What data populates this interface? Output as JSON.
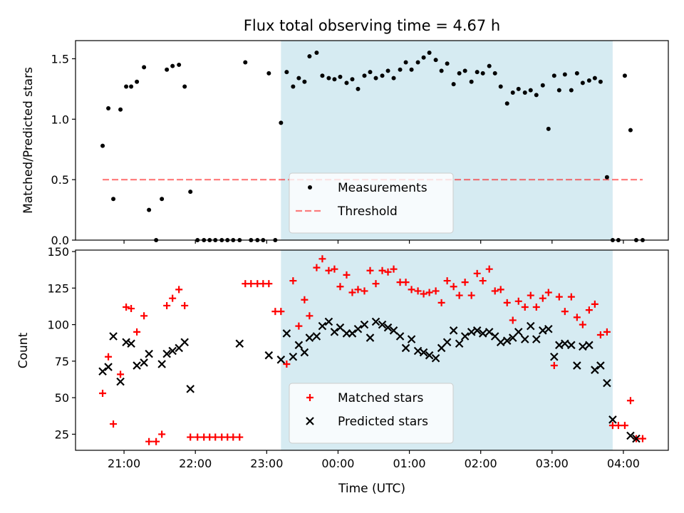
{
  "chart_data": {
    "type": "scatter",
    "title": "Flux total observing time = 4.67 h",
    "xlabel": "Time (UTC)",
    "x_ticks": [
      "21:00",
      "22:00",
      "23:00",
      "00:00",
      "01:00",
      "02:00",
      "03:00",
      "04:00"
    ],
    "x_tick_hours": [
      21,
      22,
      23,
      24,
      25,
      26,
      27,
      28
    ],
    "xlim_hours": [
      20.32,
      28.63
    ],
    "shaded_span_hours": [
      23.2,
      27.85
    ],
    "colors": {
      "span": "#add8e6",
      "measurements": "#000000",
      "threshold": "#ff0000",
      "matched": "#ff0000",
      "predicted": "#000000"
    },
    "panels": [
      {
        "id": "ratio",
        "ylabel": "Matched/Predicted stars",
        "ylim": [
          0,
          1.65
        ],
        "y_ticks": [
          0.0,
          0.5,
          1.0,
          1.5
        ],
        "y_tick_labels": [
          "0.0",
          "0.5",
          "1.0",
          "1.5"
        ],
        "legend_position": "lower-center",
        "threshold": {
          "name": "Threshold",
          "y": 0.5,
          "x_range": [
            20.7,
            28.27
          ]
        },
        "series": [
          {
            "name": "Measurements",
            "marker": "dot",
            "x": [
              20.7,
              20.78,
              20.85,
              20.95,
              21.03,
              21.1,
              21.18,
              21.28,
              21.35,
              21.45,
              21.53,
              21.6,
              21.68,
              21.77,
              21.85,
              21.93,
              22.03,
              22.12,
              22.2,
              22.28,
              22.37,
              22.45,
              22.53,
              22.62,
              22.7,
              22.78,
              22.87,
              22.95,
              23.03,
              23.12,
              23.2,
              23.28,
              23.37,
              23.45,
              23.53,
              23.6,
              23.7,
              23.78,
              23.87,
              23.95,
              24.03,
              24.12,
              24.2,
              24.28,
              24.37,
              24.45,
              24.53,
              24.62,
              24.7,
              24.78,
              24.87,
              24.95,
              25.03,
              25.12,
              25.2,
              25.28,
              25.37,
              25.45,
              25.53,
              25.62,
              25.7,
              25.78,
              25.87,
              25.95,
              26.03,
              26.12,
              26.2,
              26.28,
              26.37,
              26.45,
              26.53,
              26.62,
              26.7,
              26.78,
              26.87,
              26.95,
              27.03,
              27.1,
              27.18,
              27.27,
              27.35,
              27.43,
              27.52,
              27.6,
              27.68,
              27.77,
              27.85,
              27.93,
              28.02,
              28.1,
              28.18,
              28.27
            ],
            "y": [
              0.78,
              1.09,
              0.34,
              1.08,
              1.27,
              1.27,
              1.31,
              1.43,
              0.25,
              0.0,
              0.34,
              1.41,
              1.44,
              1.45,
              1.27,
              0.4,
              0.0,
              0.0,
              0.0,
              0.0,
              0.0,
              0.0,
              0.0,
              0.0,
              1.47,
              0.0,
              0.0,
              0.0,
              1.38,
              0.0,
              0.97,
              1.39,
              1.27,
              1.34,
              1.31,
              1.52,
              1.55,
              1.36,
              1.34,
              1.33,
              1.35,
              1.3,
              1.33,
              1.25,
              1.36,
              1.39,
              1.34,
              1.36,
              1.4,
              1.34,
              1.41,
              1.47,
              1.41,
              1.47,
              1.51,
              1.55,
              1.49,
              1.4,
              1.46,
              1.29,
              1.38,
              1.4,
              1.31,
              1.39,
              1.38,
              1.44,
              1.38,
              1.27,
              1.13,
              1.22,
              1.25,
              1.22,
              1.24,
              1.2,
              1.28,
              0.92,
              1.36,
              1.24,
              1.37,
              1.24,
              1.38,
              1.3,
              1.32,
              1.34,
              1.31,
              0.52,
              0.0,
              0.0,
              1.36,
              0.91,
              0.0,
              0.0
            ]
          }
        ]
      },
      {
        "id": "count",
        "ylabel": "Count",
        "ylim": [
          14,
          151
        ],
        "y_ticks": [
          25,
          50,
          75,
          100,
          125,
          150
        ],
        "y_tick_labels": [
          "25",
          "50",
          "75",
          "100",
          "125",
          "150"
        ],
        "legend_position": "lower-center",
        "series": [
          {
            "name": "Matched stars",
            "marker": "plus",
            "x": [
              20.7,
              20.78,
              20.85,
              20.95,
              21.03,
              21.1,
              21.18,
              21.28,
              21.35,
              21.45,
              21.53,
              21.6,
              21.68,
              21.77,
              21.85,
              21.93,
              22.03,
              22.12,
              22.2,
              22.28,
              22.37,
              22.45,
              22.53,
              22.62,
              22.7,
              22.78,
              22.87,
              22.95,
              23.03,
              23.12,
              23.2,
              23.28,
              23.37,
              23.45,
              23.53,
              23.6,
              23.7,
              23.78,
              23.87,
              23.95,
              24.03,
              24.12,
              24.2,
              24.28,
              24.37,
              24.45,
              24.53,
              24.62,
              24.7,
              24.78,
              24.87,
              24.95,
              25.03,
              25.12,
              25.2,
              25.28,
              25.37,
              25.45,
              25.53,
              25.62,
              25.7,
              25.78,
              25.87,
              25.95,
              26.03,
              26.12,
              26.2,
              26.28,
              26.37,
              26.45,
              26.53,
              26.62,
              26.7,
              26.78,
              26.87,
              26.95,
              27.03,
              27.1,
              27.18,
              27.27,
              27.35,
              27.43,
              27.52,
              27.6,
              27.68,
              27.77,
              27.85,
              27.93,
              28.02,
              28.1,
              28.18,
              28.27
            ],
            "y": [
              53,
              78,
              32,
              66,
              112,
              111,
              95,
              106,
              20,
              20,
              25,
              113,
              118,
              124,
              113,
              23,
              23,
              23,
              23,
              23,
              23,
              23,
              23,
              23,
              128,
              128,
              128,
              128,
              128,
              109,
              109,
              73,
              130,
              99,
              117,
              106,
              139,
              145,
              137,
              138,
              126,
              134,
              122,
              124,
              123,
              137,
              128,
              137,
              136,
              138,
              129,
              129,
              124,
              123,
              121,
              122,
              123,
              115,
              130,
              126,
              120,
              129,
              120,
              135,
              130,
              138,
              123,
              124,
              115,
              103,
              116,
              112,
              120,
              112,
              118,
              122,
              72,
              119,
              109,
              119,
              105,
              100,
              110,
              114,
              93,
              95,
              31,
              31,
              31,
              48,
              22,
              22
            ]
          },
          {
            "name": "Predicted stars",
            "marker": "x",
            "x": [
              20.7,
              20.78,
              20.85,
              20.95,
              21.03,
              21.1,
              21.18,
              21.28,
              21.35,
              21.53,
              21.6,
              21.68,
              21.77,
              21.85,
              21.93,
              22.62,
              23.03,
              23.2,
              23.28,
              23.37,
              23.45,
              23.53,
              23.6,
              23.7,
              23.78,
              23.87,
              23.95,
              24.03,
              24.12,
              24.2,
              24.28,
              24.37,
              24.45,
              24.53,
              24.62,
              24.7,
              24.78,
              24.87,
              24.95,
              25.03,
              25.12,
              25.2,
              25.28,
              25.37,
              25.45,
              25.53,
              25.62,
              25.7,
              25.78,
              25.87,
              25.95,
              26.03,
              26.12,
              26.2,
              26.28,
              26.37,
              26.45,
              26.53,
              26.62,
              26.7,
              26.78,
              26.87,
              26.95,
              27.03,
              27.1,
              27.18,
              27.27,
              27.35,
              27.43,
              27.52,
              27.6,
              27.68,
              27.77,
              27.85,
              28.1,
              28.18
            ],
            "y": [
              68,
              71,
              92,
              61,
              88,
              87,
              72,
              74,
              80,
              73,
              80,
              82,
              84,
              88,
              56,
              87,
              79,
              76,
              94,
              78,
              86,
              81,
              91,
              92,
              99,
              102,
              95,
              98,
              94,
              94,
              97,
              100,
              91,
              102,
              100,
              98,
              96,
              92,
              84,
              90,
              82,
              81,
              79,
              77,
              84,
              88,
              96,
              87,
              92,
              95,
              96,
              94,
              95,
              92,
              88,
              89,
              91,
              95,
              90,
              99,
              90,
              96,
              97,
              78,
              86,
              87,
              86,
              72,
              85,
              86,
              69,
              72,
              60,
              35,
              24,
              22
            ]
          }
        ]
      }
    ]
  }
}
